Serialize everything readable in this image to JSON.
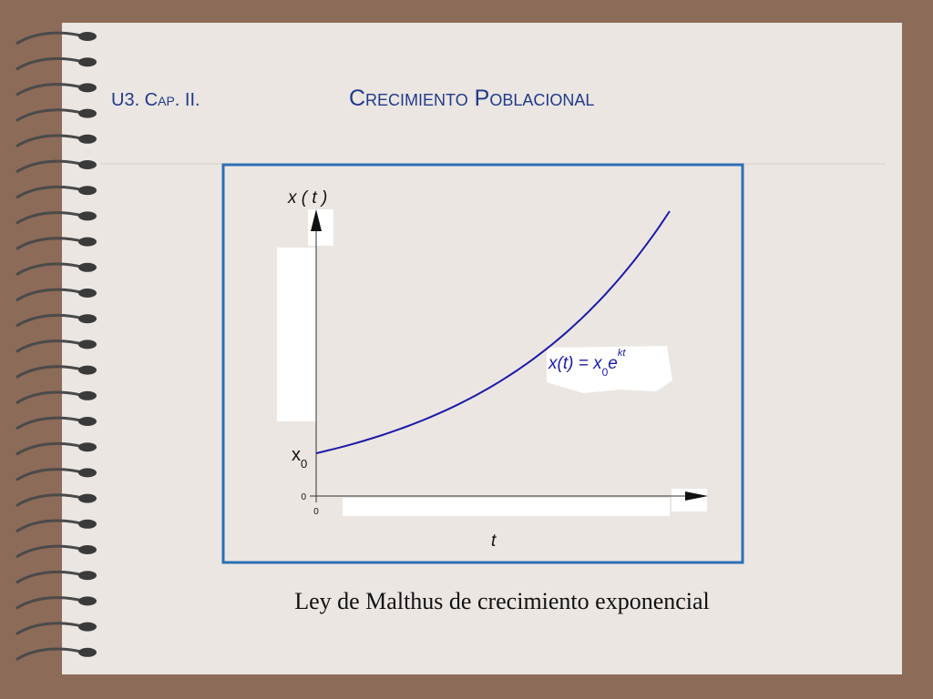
{
  "header": {
    "unit": "U3. Cap. II.",
    "title": "Crecimiento Poblacional"
  },
  "figure": {
    "y_axis_label": "x ( t )",
    "x_axis_label": "t",
    "initial_label": {
      "base": "x",
      "sub": "0"
    },
    "y_origin_tick": "0",
    "x_origin_tick": "0",
    "formula": {
      "lhs": "x(t) = x",
      "sub": "0",
      "base": "e",
      "sup": "kt"
    }
  },
  "caption": "Ley de Malthus de crecimiento exponencial"
}
